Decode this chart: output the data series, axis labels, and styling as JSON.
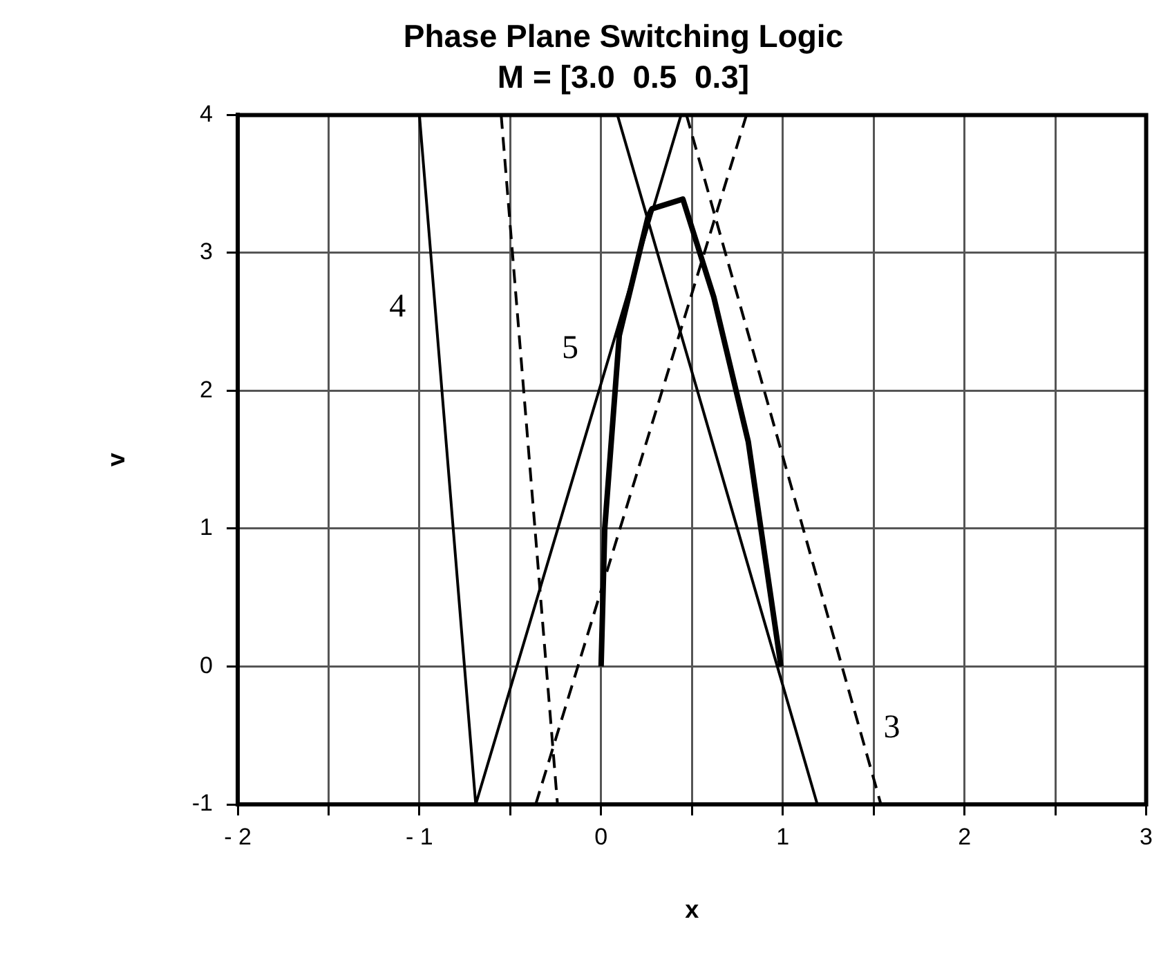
{
  "chart_data": {
    "type": "line",
    "title": "Phase Plane Switching Logic",
    "subtitle": "M = [3.0  0.5  0.3]",
    "xlabel": "x",
    "ylabel": "v",
    "series": [
      {
        "color": "#000000",
        "x": [
          -1,
          -0.69,
          0.44
        ],
        "values": [
          4,
          -1,
          4
        ]
      },
      {
        "color": "#000000",
        "x": [
          0.09,
          1.19
        ],
        "values": [
          4,
          -1
        ]
      },
      {
        "color": "#000000",
        "line_style": "dashed",
        "x": [
          -0.55,
          -0.24
        ],
        "values": [
          4,
          -1
        ]
      },
      {
        "color": "#000000",
        "line_style": "dashed",
        "x": [
          -0.36,
          0.8
        ],
        "values": [
          -1,
          4
        ]
      },
      {
        "color": "#000000",
        "line_style": "dashed",
        "x": [
          0.47,
          1.54
        ],
        "values": [
          4,
          -1
        ]
      },
      {
        "color": "#000000",
        "x": [
          0,
          0.02,
          0.1,
          0.26,
          0.28,
          0.45,
          0.62,
          0.81,
          0.99
        ],
        "values": [
          0,
          1,
          2.4,
          3.27,
          3.32,
          3.39,
          2.68,
          1.63,
          0
        ]
      }
    ],
    "xlim": [
      -2,
      3
    ],
    "ylim": [
      -1,
      4
    ],
    "xticks": [
      {
        "value": -2,
        "label": "- 2"
      },
      {
        "value": -1.5,
        "label": null
      },
      {
        "value": -1,
        "label": "- 1"
      },
      {
        "value": -0.5,
        "label": null
      },
      0,
      {
        "value": 0.5,
        "label": null
      },
      1,
      {
        "value": 1.5,
        "label": null
      },
      2,
      {
        "value": 2.5,
        "label": null
      },
      3
    ],
    "yticks": [
      -1,
      0,
      1,
      2,
      3,
      4
    ],
    "grid": true,
    "annotations": [
      "4",
      "5",
      "3"
    ]
  }
}
